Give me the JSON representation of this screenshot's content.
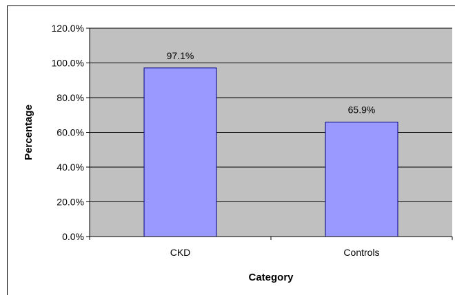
{
  "chart_data": {
    "type": "bar",
    "categories": [
      "CKD",
      "Controls"
    ],
    "values": [
      97.1,
      65.9
    ],
    "data_labels": [
      "97.1%",
      "65.9%"
    ],
    "title": "",
    "xlabel": "Category",
    "ylabel": "Percentage",
    "ylim": [
      0,
      120
    ],
    "yticks": [
      0,
      20,
      40,
      60,
      80,
      100,
      120
    ],
    "ytick_labels": [
      "0.0%",
      "20.0%",
      "40.0%",
      "60.0%",
      "80.0%",
      "100.0%",
      "120.0%"
    ],
    "grid": true,
    "legend": "none",
    "colors": {
      "bar_fill": "#9999ff",
      "bar_stroke": "#000080",
      "plot_background": "#c0c0c0",
      "gridline": "#000000"
    }
  }
}
